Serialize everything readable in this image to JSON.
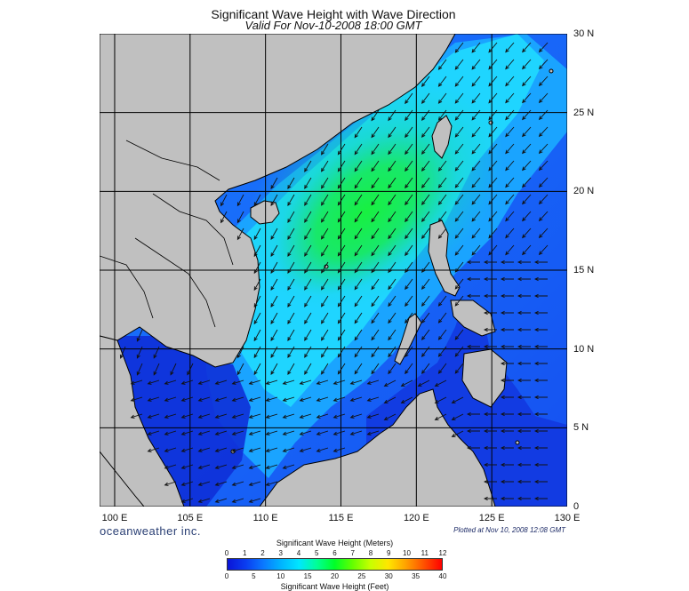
{
  "title": "Significant Wave Height with Wave Direction",
  "subtitle": "Valid For Nov-10-2008 18:00 GMT",
  "map": {
    "region": "South China Sea",
    "lon_range": [
      99,
      130
    ],
    "lat_range": [
      0,
      30
    ],
    "grid_step_deg": 5,
    "land_color": "#c0c0c0",
    "coast_color": "#000000",
    "lat_labels": [
      "30 N",
      "25 N",
      "20 N",
      "15 N",
      "10 N",
      "5 N",
      "0"
    ],
    "lon_labels": [
      "100 E",
      "105 E",
      "110 E",
      "115 E",
      "120 E",
      "125 E",
      "130 E"
    ],
    "arrow_direction": "toward southwest (northeasterly flow)"
  },
  "branding": "oceanweather inc.",
  "plotted_note": "Plotted at Nov 10, 2008 12:08 GMT",
  "colorbar": {
    "title_top": "Significant Wave Height (Meters)",
    "title_bottom": "Significant Wave Height (Feet)",
    "meters_ticks": [
      "0",
      "1",
      "2",
      "3",
      "4",
      "5",
      "6",
      "7",
      "8",
      "9",
      "10",
      "11",
      "12"
    ],
    "feet_ticks": [
      "0",
      "5",
      "10",
      "15",
      "20",
      "25",
      "30",
      "35",
      "40"
    ],
    "colors": [
      "#0a14d8",
      "#0a3cf0",
      "#0a78ff",
      "#00b4ff",
      "#00e6ff",
      "#00ff96",
      "#00ff28",
      "#64ff00",
      "#c8ff00",
      "#ffe600",
      "#ffa000",
      "#ff5000",
      "#ff0000"
    ]
  }
}
